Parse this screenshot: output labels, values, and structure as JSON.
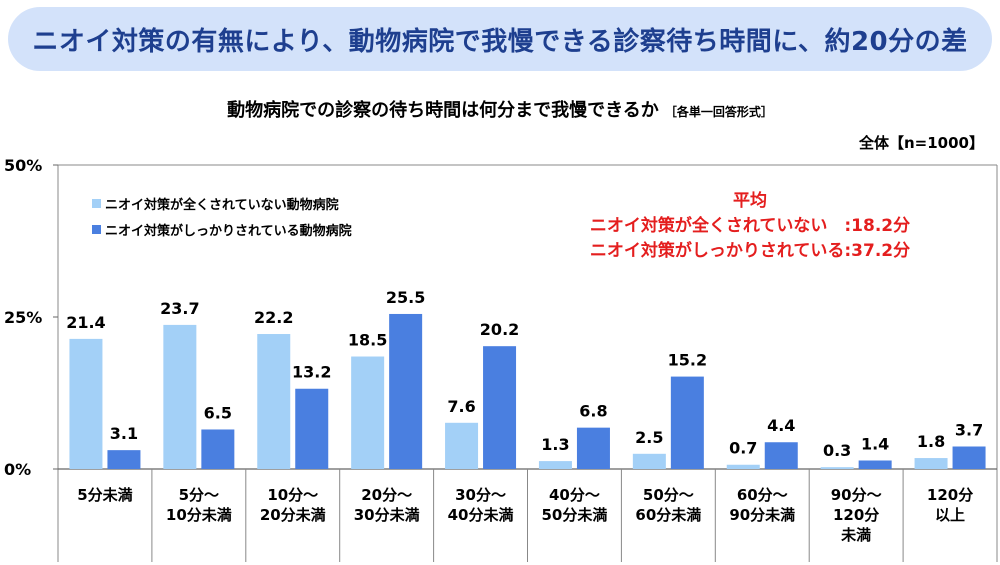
{
  "banner": {
    "headline": "ニオイ対策の有無により、動物病院で我慢できる診察待ち時間に、約20分の差"
  },
  "chart_data": {
    "type": "bar",
    "title": "動物病院での診察の待ち時間は何分まで我慢できるか",
    "title_note": "［各単一回答形式］",
    "sample": "全体【n=1000】",
    "xlabel": "",
    "ylabel": "",
    "ylim": [
      0,
      50
    ],
    "yticks": [
      {
        "value": 0,
        "label": "0%"
      },
      {
        "value": 25,
        "label": "25%"
      },
      {
        "value": 50,
        "label": "50%"
      }
    ],
    "categories": [
      [
        "5分未満"
      ],
      [
        "5分～",
        "10分未満"
      ],
      [
        "10分～",
        "20分未満"
      ],
      [
        "20分～",
        "30分未満"
      ],
      [
        "30分～",
        "40分未満"
      ],
      [
        "40分～",
        "50分未満"
      ],
      [
        "50分～",
        "60分未満"
      ],
      [
        "60分～",
        "90分未満"
      ],
      [
        "90分～",
        "120分",
        "未満"
      ],
      [
        "120分",
        "以上"
      ]
    ],
    "series": [
      {
        "name": "ニオイ対策が全くされていない動物病院",
        "color": "#a3d0f7",
        "values": [
          21.4,
          23.7,
          22.2,
          18.5,
          7.6,
          1.3,
          2.5,
          0.7,
          0.3,
          1.8
        ],
        "labels": [
          "21.4",
          "23.7",
          "22.2",
          "18.5",
          "7.6",
          "1.3",
          "2.5",
          "0.7",
          "0.3",
          "1.8"
        ]
      },
      {
        "name": "ニオイ対策がしっかりされている動物病院",
        "color": "#4a7fe0",
        "values": [
          3.1,
          6.5,
          13.2,
          25.5,
          20.2,
          6.8,
          15.2,
          4.4,
          1.4,
          3.7
        ],
        "labels": [
          "3.1",
          "6.5",
          "13.2",
          "25.5",
          "20.2",
          "6.8",
          "15.2",
          "4.4",
          "1.4",
          "3.7"
        ]
      }
    ],
    "annotation": {
      "title": "平均",
      "line1": "ニオイ対策が全くされていない　:18.2分",
      "line2": "ニオイ対策がしっかりされている:37.2分"
    }
  }
}
